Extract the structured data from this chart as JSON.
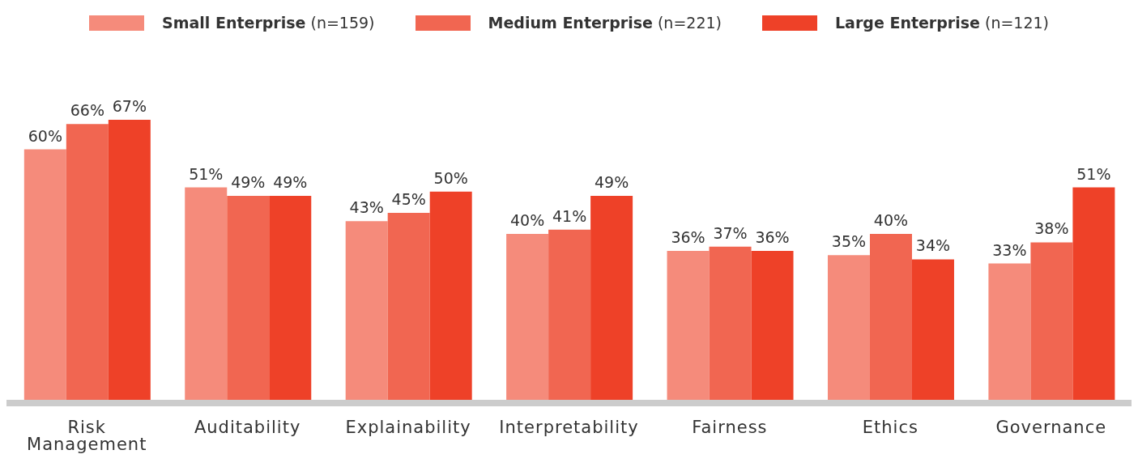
{
  "chart_data": {
    "type": "bar",
    "categories": [
      "Risk Management",
      "Auditability",
      "Explainability",
      "Interpretability",
      "Fairness",
      "Ethics",
      "Governance"
    ],
    "series": [
      {
        "name": "Small Enterprise (n=159)",
        "color": "#f58b7b",
        "values": [
          60,
          51,
          43,
          40,
          36,
          35,
          33
        ],
        "value_labels": [
          "60%",
          "51%",
          "43%",
          "40%",
          "36%",
          "35%",
          "33%"
        ]
      },
      {
        "name": "Medium Enterprise (n=221)",
        "color": "#f16651",
        "values": [
          66,
          49,
          45,
          41,
          37,
          40,
          38
        ],
        "value_labels": [
          "66%",
          "49%",
          "45%",
          "41%",
          "37%",
          "40%",
          "38%"
        ]
      },
      {
        "name": "Large Enterprise (n=121)",
        "color": "#ee4128",
        "values": [
          67,
          49,
          50,
          49,
          36,
          34,
          51
        ],
        "value_labels": [
          "67%",
          "49%",
          "50%",
          "49%",
          "36%",
          "34%",
          "51%"
        ]
      }
    ],
    "legend": "top"
  }
}
